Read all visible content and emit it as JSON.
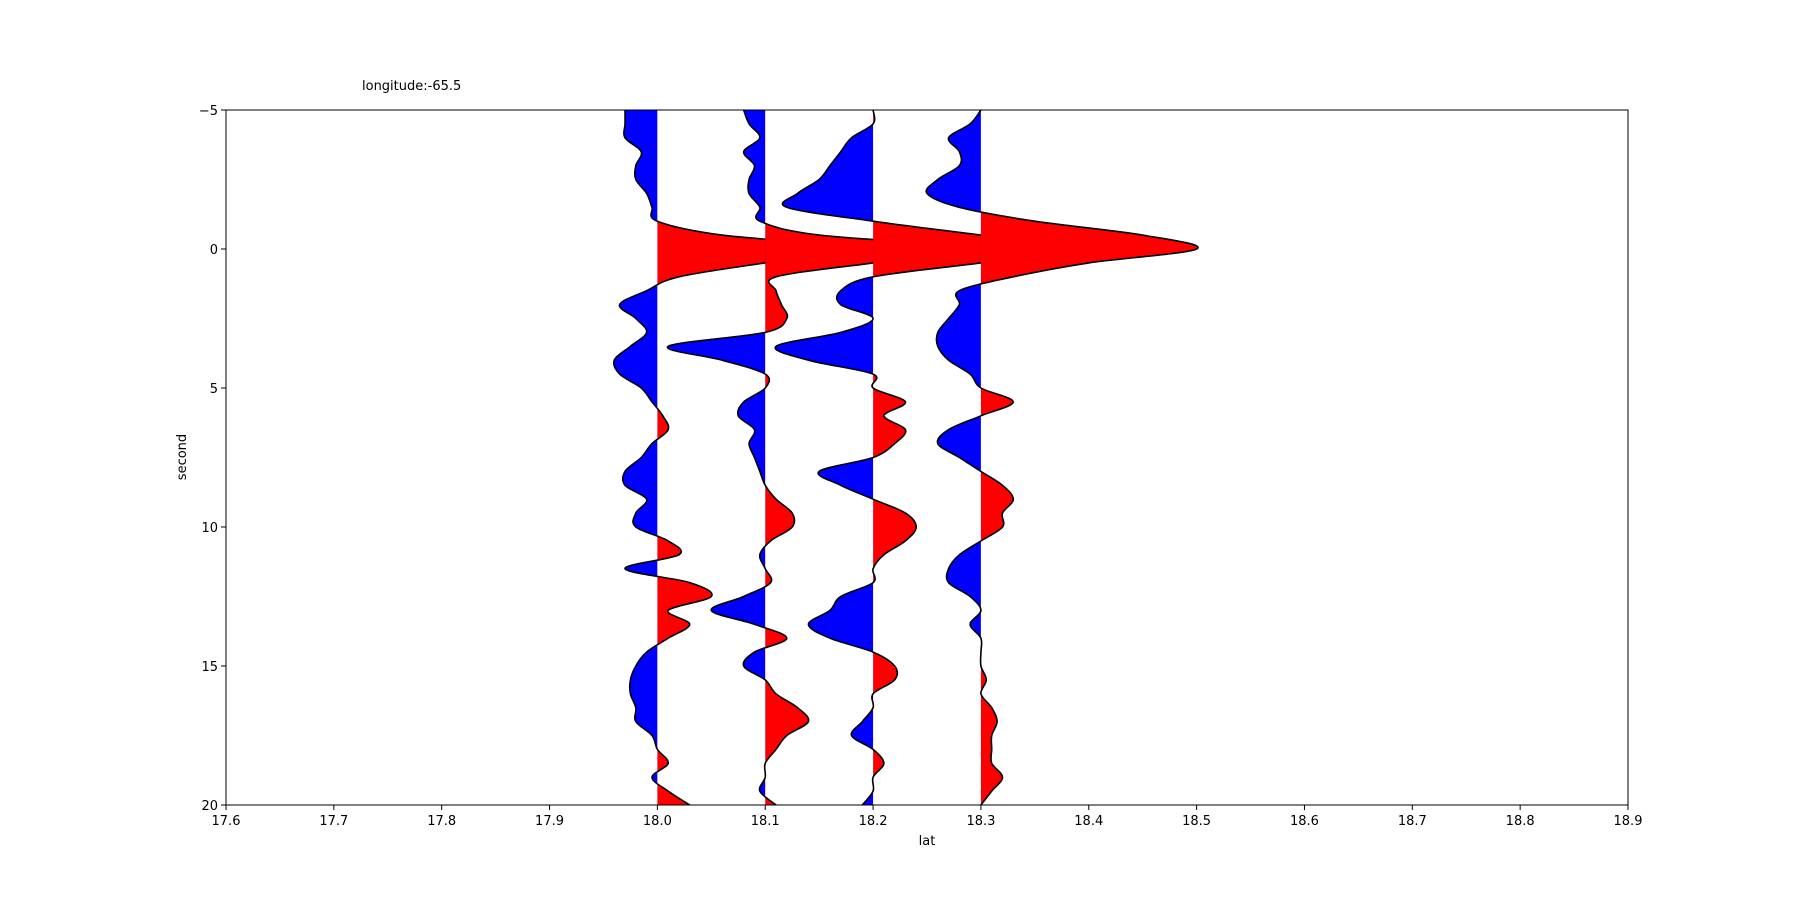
{
  "chart_data": {
    "type": "wiggle",
    "title": "longitude:-65.5",
    "xlabel": "lat",
    "ylabel": "second",
    "xlim": [
      17.6,
      18.9
    ],
    "xticks": [
      17.6,
      17.7,
      17.8,
      17.9,
      {
        "value": 18,
        "label": "18.0"
      },
      18.1,
      18.2,
      18.3,
      18.4,
      18.5,
      18.6,
      18.7,
      18.8,
      18.9
    ],
    "ylim": [
      20,
      -5
    ],
    "yticks": [
      {
        "value": -5,
        "label": "−5"
      },
      0,
      5,
      10,
      15,
      20
    ],
    "positive_color": "red",
    "negative_color": "blue",
    "line_color": "black",
    "time": [
      -5,
      -4.5,
      -4,
      -3.5,
      -3,
      -2.5,
      -2,
      -1.5,
      -1,
      -0.5,
      0,
      0.5,
      1,
      1.5,
      2,
      2.5,
      3,
      3.5,
      4,
      4.5,
      5,
      5.5,
      6,
      6.5,
      7,
      7.5,
      8,
      8.5,
      9,
      9.5,
      10,
      10.5,
      11,
      11.5,
      12,
      12.5,
      13,
      13.5,
      14,
      14.5,
      15,
      15.5,
      16,
      16.5,
      17,
      17.5,
      18,
      18.5,
      19,
      19.5,
      20
    ],
    "traces": [
      {
        "baseline": 18,
        "values": [
          17.97,
          17.97,
          17.97,
          17.985,
          17.98,
          17.98,
          17.99,
          17.995,
          18.0,
          18.06,
          18.19,
          18.1,
          18.02,
          17.99,
          17.965,
          17.98,
          17.99,
          17.975,
          17.96,
          17.965,
          17.985,
          17.995,
          18.005,
          18.01,
          17.995,
          17.985,
          17.97,
          17.97,
          17.99,
          17.98,
          17.98,
          18.01,
          18.02,
          17.97,
          18.03,
          18.05,
          18.01,
          18.03,
          18.01,
          17.99,
          17.98,
          17.975,
          17.975,
          17.98,
          17.98,
          17.995,
          18.0,
          18.01,
          17.995,
          18.01,
          18.03
        ]
      },
      {
        "baseline": 18.1,
        "values": [
          18.08,
          18.085,
          18.095,
          18.08,
          18.09,
          18.085,
          18.085,
          18.095,
          18.095,
          18.15,
          18.3,
          18.2,
          18.11,
          18.11,
          18.115,
          18.12,
          18.1,
          18.01,
          18.06,
          18.1,
          18.1,
          18.08,
          18.075,
          18.09,
          18.085,
          18.09,
          18.095,
          18.1,
          18.11,
          18.125,
          18.125,
          18.105,
          18.095,
          18.1,
          18.105,
          18.08,
          18.05,
          18.09,
          18.12,
          18.09,
          18.08,
          18.1,
          18.11,
          18.13,
          18.14,
          18.12,
          18.11,
          18.1,
          18.1,
          18.095,
          18.11
        ]
      },
      {
        "baseline": 18.2,
        "values": [
          18.2,
          18.2,
          18.18,
          18.17,
          18.16,
          18.15,
          18.13,
          18.12,
          18.2,
          18.3,
          18.4,
          18.3,
          18.2,
          18.17,
          18.17,
          18.2,
          18.17,
          18.11,
          18.14,
          18.2,
          18.2,
          18.23,
          18.21,
          18.23,
          18.22,
          18.2,
          18.15,
          18.17,
          18.2,
          18.23,
          18.24,
          18.23,
          18.21,
          18.2,
          18.2,
          18.17,
          18.16,
          18.14,
          18.16,
          18.2,
          18.22,
          18.22,
          18.2,
          18.2,
          18.19,
          18.18,
          18.2,
          18.21,
          18.2,
          18.2,
          18.19
        ]
      },
      {
        "baseline": 18.3,
        "values": [
          18.3,
          18.29,
          18.27,
          18.28,
          18.28,
          18.26,
          18.25,
          18.28,
          18.35,
          18.45,
          18.5,
          18.4,
          18.33,
          18.28,
          18.28,
          18.27,
          18.26,
          18.26,
          18.27,
          18.29,
          18.3,
          18.33,
          18.3,
          18.27,
          18.26,
          18.28,
          18.3,
          18.32,
          18.33,
          18.32,
          18.32,
          18.3,
          18.28,
          18.27,
          18.27,
          18.29,
          18.3,
          18.29,
          18.3,
          18.3,
          18.3,
          18.305,
          18.3,
          18.31,
          18.315,
          18.31,
          18.31,
          18.31,
          18.32,
          18.31,
          18.3
        ]
      }
    ]
  }
}
